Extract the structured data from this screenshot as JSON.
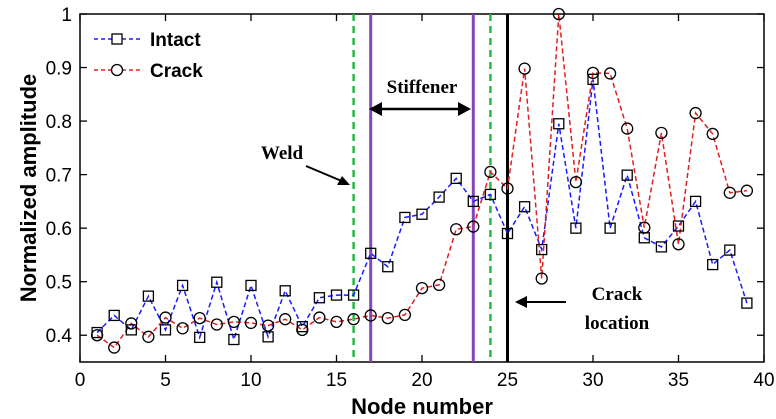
{
  "chart_data": {
    "type": "line",
    "title": "",
    "xlabel": "Node number",
    "ylabel": "Normalized amplitude",
    "xlim": [
      0,
      40
    ],
    "ylim": [
      0.35,
      1.0
    ],
    "xticks": [
      "0",
      "5",
      "10",
      "15",
      "20",
      "25",
      "30",
      "35",
      "40"
    ],
    "yticks": [
      "0.4",
      "0.5",
      "0.6",
      "0.7",
      "0.8",
      "0.9",
      "1"
    ],
    "grid": false,
    "legend_position": "top-left",
    "x": [
      1,
      2,
      3,
      4,
      5,
      6,
      7,
      8,
      9,
      10,
      11,
      12,
      13,
      14,
      15,
      16,
      17,
      18,
      19,
      20,
      21,
      22,
      23,
      24,
      25,
      26,
      27,
      28,
      29,
      30,
      31,
      32,
      33,
      34,
      35,
      36,
      37,
      38,
      39
    ],
    "series": [
      {
        "name": "Intact",
        "color": "#1a1aff",
        "marker": "square",
        "values": [
          0.405,
          0.437,
          0.41,
          0.473,
          0.41,
          0.493,
          0.396,
          0.499,
          0.392,
          0.493,
          0.397,
          0.483,
          0.416,
          0.47,
          0.475,
          0.475,
          0.553,
          0.528,
          0.62,
          0.626,
          0.658,
          0.693,
          0.65,
          0.663,
          0.59,
          0.64,
          0.56,
          0.795,
          0.6,
          0.878,
          0.6,
          0.699,
          0.582,
          0.565,
          0.604,
          0.65,
          0.532,
          0.559,
          0.46
        ]
      },
      {
        "name": "Crack",
        "color": "#e02020",
        "marker": "circle",
        "values": [
          0.4,
          0.377,
          0.422,
          0.397,
          0.433,
          0.413,
          0.432,
          0.42,
          0.425,
          0.423,
          0.418,
          0.43,
          0.41,
          0.433,
          0.425,
          0.43,
          0.437,
          0.432,
          0.438,
          0.488,
          0.494,
          0.598,
          0.603,
          0.705,
          0.674,
          0.898,
          0.506,
          1.0,
          0.686,
          0.89,
          0.889,
          0.786,
          0.601,
          0.778,
          0.57,
          0.815,
          0.776,
          0.666,
          0.67
        ]
      }
    ],
    "vertical_lines": [
      {
        "x": 16,
        "color": "#22bb44",
        "style": "dashed"
      },
      {
        "x": 24,
        "color": "#22bb44",
        "style": "dashed"
      },
      {
        "x": 17,
        "color": "#8844bb",
        "style": "solid"
      },
      {
        "x": 23,
        "color": "#8844bb",
        "style": "solid"
      },
      {
        "x": 25,
        "color": "#000000",
        "style": "solid"
      }
    ],
    "annotations": {
      "stiffener": "Stiffener",
      "weld": "Weld",
      "crack_line1": "Crack",
      "crack_line2": "location"
    }
  }
}
